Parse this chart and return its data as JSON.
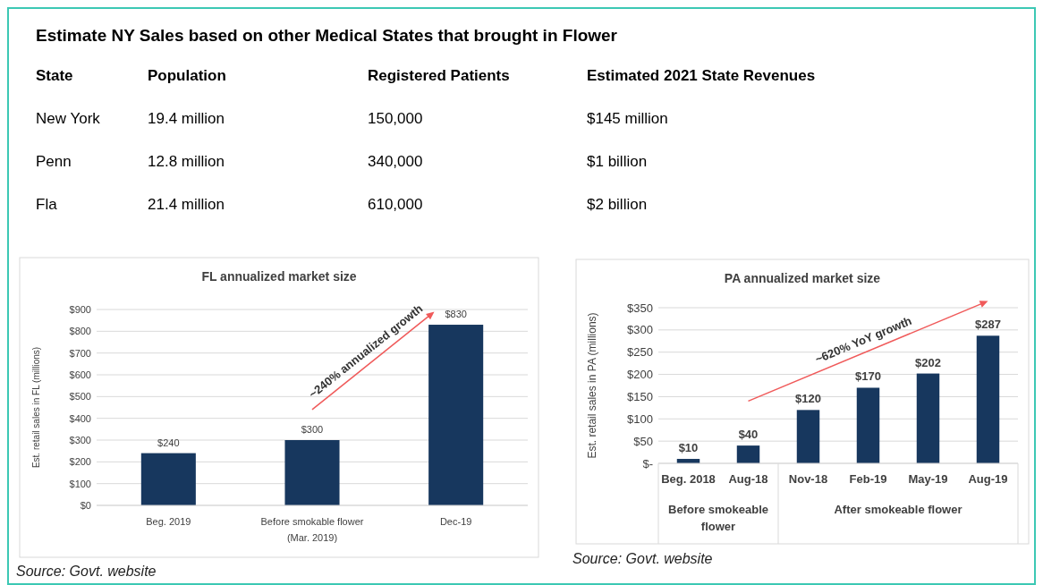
{
  "chart_data": [
    {
      "type": "other",
      "title": "Estimate NY Sales based on other Medical States that brought in Flower",
      "annotations": [
        "State",
        "Population",
        "Registered Patients",
        "Estimated 2021 State Revenues",
        "New York",
        "19.4 million",
        "150,000",
        "$145 million",
        "Penn",
        "12.8 million",
        "340,000",
        "$1 billion",
        "Fla",
        "21.4 million",
        "610,000",
        "$2 billion"
      ]
    },
    {
      "type": "bar",
      "title": "FL annualized market size",
      "ylabel": "Est. retail sales in FL (millions)",
      "categories": [
        "Beg. 2019",
        "Before smokable flower (Mar. 2019)",
        "Dec-19"
      ],
      "values": [
        240,
        300,
        830
      ],
      "value_labels": [
        "$240",
        "$300",
        "$830"
      ],
      "color": "#17375e",
      "ylim": [
        0,
        900
      ],
      "yticks": [
        {
          "value": 0,
          "label": "$0"
        },
        {
          "value": 100,
          "label": "$100"
        },
        {
          "value": 200,
          "label": "$200"
        },
        {
          "value": 300,
          "label": "$300"
        },
        {
          "value": 400,
          "label": "$400"
        },
        {
          "value": 500,
          "label": "$500"
        },
        {
          "value": 600,
          "label": "$600"
        },
        {
          "value": 700,
          "label": "$700"
        },
        {
          "value": 800,
          "label": "$800"
        },
        {
          "value": 900,
          "label": "$900"
        }
      ],
      "grid": "y",
      "annotations": [
        "~240% annualized growth",
        "Source: Govt. website"
      ]
    },
    {
      "type": "bar",
      "title": "PA annualized market size",
      "ylabel": "Est. retail sales in PA (millions)",
      "categories": [
        "Beg. 2018",
        "Aug-18",
        "Nov-18",
        "Feb-19",
        "May-19",
        "Aug-19"
      ],
      "values": [
        10,
        40,
        120,
        170,
        202,
        287
      ],
      "value_labels": [
        "$10",
        "$40",
        "$120",
        "$170",
        "$202",
        "$287"
      ],
      "color": "#17375e",
      "ylim": [
        0,
        350
      ],
      "yticks": [
        {
          "value": 0,
          "label": "$-"
        },
        {
          "value": 50,
          "label": "$50"
        },
        {
          "value": 100,
          "label": "$100"
        },
        {
          "value": 150,
          "label": "$150"
        },
        {
          "value": 200,
          "label": "$200"
        },
        {
          "value": 250,
          "label": "$250"
        },
        {
          "value": 300,
          "label": "$300"
        },
        {
          "value": 350,
          "label": "$350"
        }
      ],
      "grid": "y",
      "annotations": [
        "~620% YoY growth",
        "Before smokeable flower",
        "After smokeable flower",
        "Source: Govt. website"
      ]
    }
  ]
}
